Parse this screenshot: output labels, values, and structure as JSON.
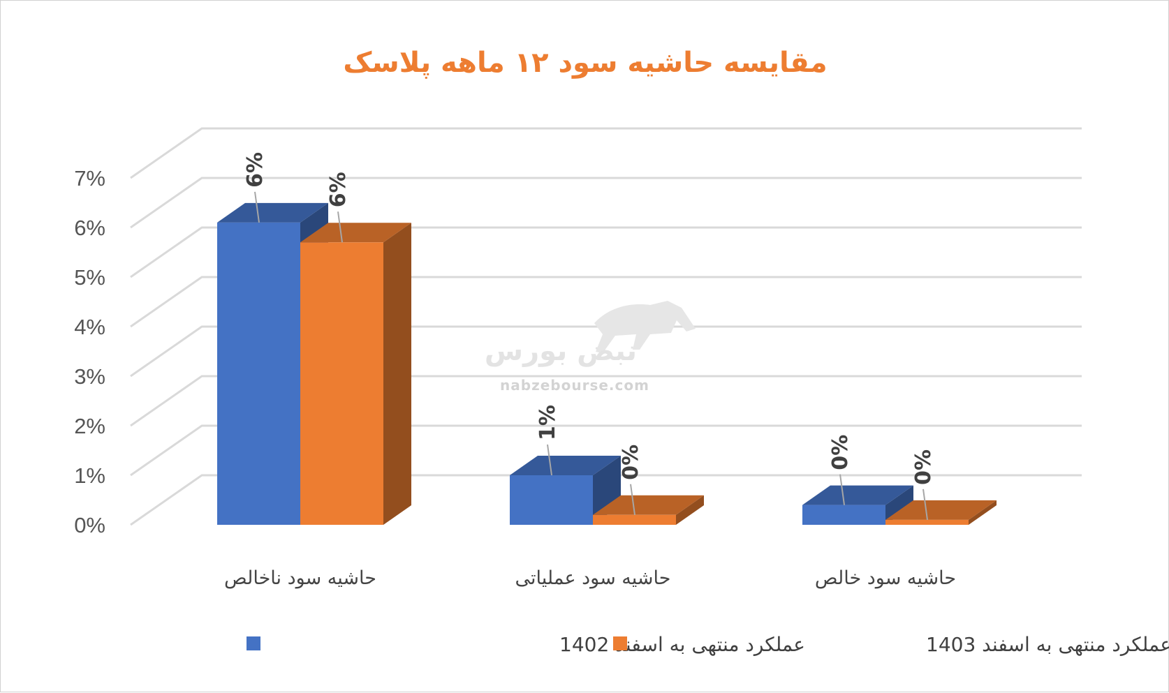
{
  "chart_data": {
    "type": "bar",
    "title": "مقایسه حاشیه سود ۱۲ ماهه پلاسک",
    "categories": [
      "حاشیه سود ناخالص",
      "حاشیه سود عملیاتی",
      "حاشیه سود خالص"
    ],
    "series": [
      {
        "name": "عملکرد منتهی به اسفند 1402",
        "values": [
          6.1,
          1.0,
          0.4
        ],
        "labels": [
          "6%",
          "1%",
          "0%"
        ],
        "color": "#4472C4"
      },
      {
        "name": "عملکرد منتهی به اسفند 1403",
        "values": [
          5.7,
          0.2,
          0.1
        ],
        "labels": [
          "6%",
          "0%",
          "0%"
        ],
        "color": "#ED7D31"
      }
    ],
    "ylim": [
      0,
      7
    ],
    "yticks": [
      "0%",
      "1%",
      "2%",
      "3%",
      "4%",
      "5%",
      "6%",
      "7%"
    ],
    "grid": true,
    "legend": "bottom",
    "title_color": "#ED7D31"
  },
  "watermark": {
    "text": "نبض بورس",
    "url": "nabzebourse.com"
  }
}
